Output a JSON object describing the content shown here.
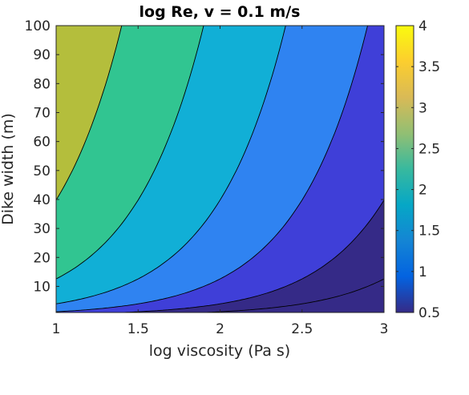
{
  "chart_data": {
    "type": "contour",
    "title": "log Re, v = 0.1 m/s",
    "xlabel": "log viscosity (Pa s)",
    "ylabel": "Dike width (m)",
    "xlim": [
      1,
      3
    ],
    "ylim": [
      1,
      100
    ],
    "xticks": [
      "1",
      "1.5",
      "2",
      "2.5",
      "3"
    ],
    "yticks": [
      "10",
      "20",
      "30",
      "40",
      "50",
      "60",
      "70",
      "80",
      "90",
      "100"
    ],
    "field": "log10(w) + 2.4 - x",
    "contour_levels": [
      0.5,
      1,
      1.5,
      2,
      2.5,
      3
    ],
    "fill_colors": [
      "#352a87",
      "#3f3fd8",
      "#2f83f1",
      "#11afd6",
      "#31c591",
      "#b4be3c"
    ],
    "colorbar": {
      "clim": [
        0.5,
        4
      ],
      "ticks": [
        "0.5",
        "1",
        "1.5",
        "2",
        "2.5",
        "3",
        "3.5",
        "4"
      ],
      "colors": [
        "#352a87",
        "#0363e1",
        "#1485d4",
        "#06a7c6",
        "#38b99e",
        "#92bf73",
        "#d9ba56",
        "#fcce2e",
        "#f9fb0e"
      ]
    },
    "grid": false
  }
}
